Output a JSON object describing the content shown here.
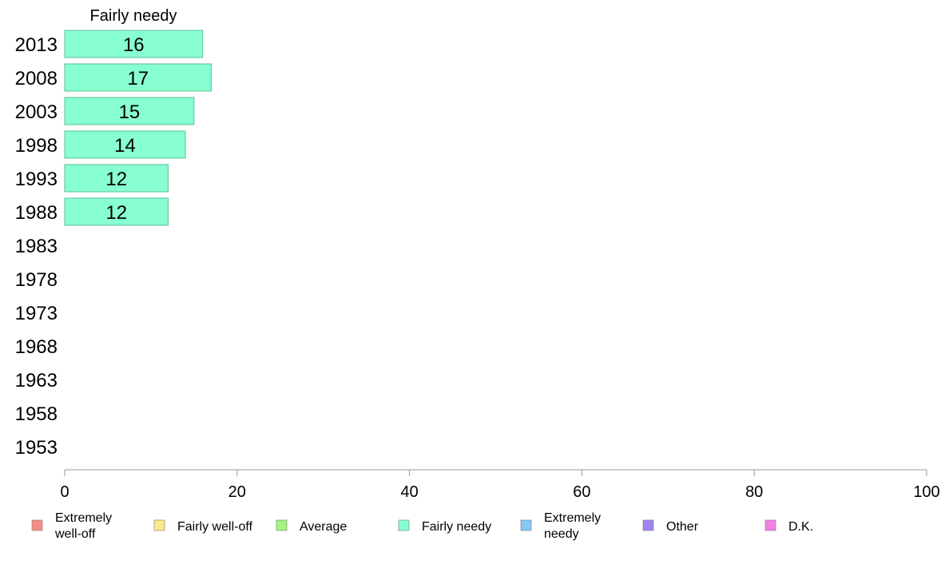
{
  "chart_data": {
    "type": "bar",
    "orientation": "horizontal",
    "title": "Fairly needy",
    "categories": [
      "2013",
      "2008",
      "2003",
      "1998",
      "1993",
      "1988",
      "1983",
      "1978",
      "1973",
      "1968",
      "1963",
      "1958",
      "1953"
    ],
    "series": [
      {
        "name": "Fairly needy",
        "values": [
          16,
          17,
          15,
          14,
          12,
          12,
          null,
          null,
          null,
          null,
          null,
          null,
          null
        ]
      }
    ],
    "bar_color": "#87ffd1",
    "bar_stroke": "#5fbf95",
    "xlim": [
      0,
      100
    ],
    "xticks": [
      0,
      20,
      40,
      60,
      80,
      100
    ],
    "grid": false,
    "legend_position": "bottom",
    "legend": [
      {
        "label": "Extremely\nwell-off",
        "color": "#f88c85"
      },
      {
        "label": "Fairly well-off",
        "color": "#fde98a"
      },
      {
        "label": "Average",
        "color": "#a3f57f"
      },
      {
        "label": "Fairly needy",
        "color": "#87ffd1"
      },
      {
        "label": "Extremely\nneedy",
        "color": "#87c9f7"
      },
      {
        "label": "Other",
        "color": "#a385f5"
      },
      {
        "label": "D.K.",
        "color": "#f67ee7"
      }
    ]
  }
}
